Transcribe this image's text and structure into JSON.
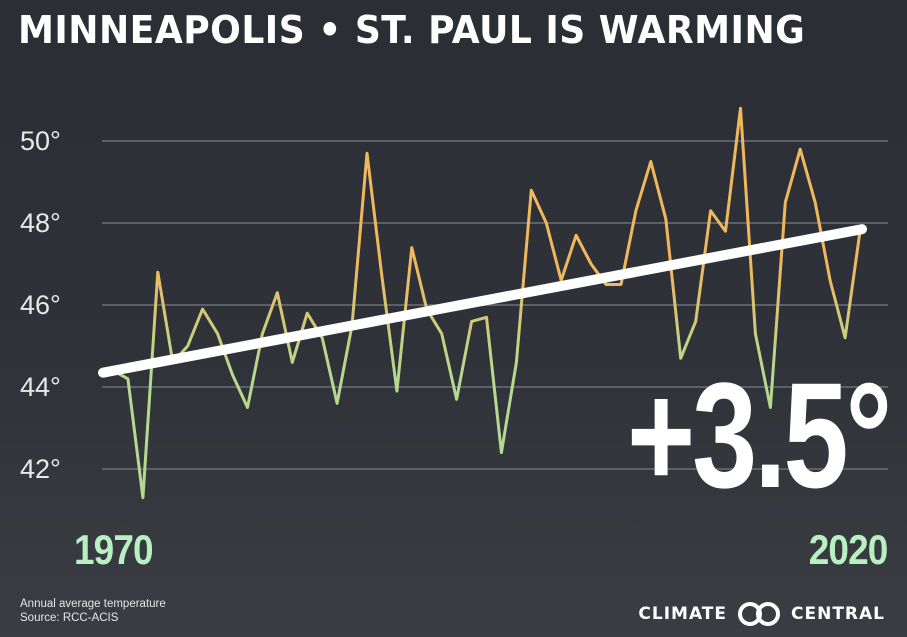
{
  "title": "MINNEAPOLIS • ST. PAUL IS WARMING",
  "change_label": "+3.5°",
  "caption": "Annual average temperature",
  "source": "Source: RCC-ACIS",
  "brand": {
    "left": "CLIMATE",
    "right": "CENTRAL",
    "logo_icon": "climate-central-rings-icon"
  },
  "colors": {
    "background": "#2f3238",
    "line_cool": "#b5d98e",
    "line_warm": "#f0b85c",
    "trend": "#ffffff",
    "year_label": "#b8f0c2",
    "gridline": "#6c6f75"
  },
  "chart_data": {
    "type": "line",
    "title": "MINNEAPOLIS • ST. PAUL IS WARMING",
    "xlabel": "",
    "ylabel": "",
    "x_tick_labels": [
      "1970",
      "2020"
    ],
    "y_ticks": [
      42,
      44,
      46,
      48,
      50
    ],
    "y_tick_labels": [
      "42°",
      "44°",
      "46°",
      "48°",
      "50°"
    ],
    "xlim": [
      1970,
      2020
    ],
    "ylim": [
      41,
      51.5
    ],
    "grid": true,
    "series": [
      {
        "x": [
          1970,
          1971,
          1972,
          1973,
          1974,
          1975,
          1976,
          1977,
          1978,
          1979,
          1980,
          1981,
          1982,
          1983,
          1984,
          1985,
          1986,
          1987,
          1988,
          1989,
          1990,
          1991,
          1992,
          1993,
          1994,
          1995,
          1996,
          1997,
          1998,
          1999,
          2000,
          2001,
          2002,
          2003,
          2004,
          2005,
          2006,
          2007,
          2008,
          2009,
          2010,
          2011,
          2012,
          2013,
          2014,
          2015,
          2016,
          2017,
          2018,
          2019,
          2020
        ],
        "values": [
          44.4,
          44.2,
          41.3,
          46.8,
          44.6,
          45.0,
          45.9,
          45.3,
          44.3,
          43.5,
          45.3,
          46.3,
          44.6,
          45.8,
          45.2,
          43.6,
          45.5,
          49.7,
          46.7,
          43.9,
          47.4,
          45.9,
          45.3,
          43.7,
          45.6,
          45.7,
          42.4,
          44.6,
          48.8,
          48.0,
          46.6,
          47.7,
          47.0,
          46.5,
          46.5,
          48.3,
          49.5,
          48.1,
          44.7,
          45.6,
          48.3,
          47.8,
          50.8,
          45.3,
          43.5,
          48.5,
          49.8,
          48.5,
          46.6,
          45.2,
          47.8
        ]
      }
    ],
    "trend": {
      "x": [
        1970,
        2020
      ],
      "values": [
        44.35,
        47.85
      ]
    }
  }
}
